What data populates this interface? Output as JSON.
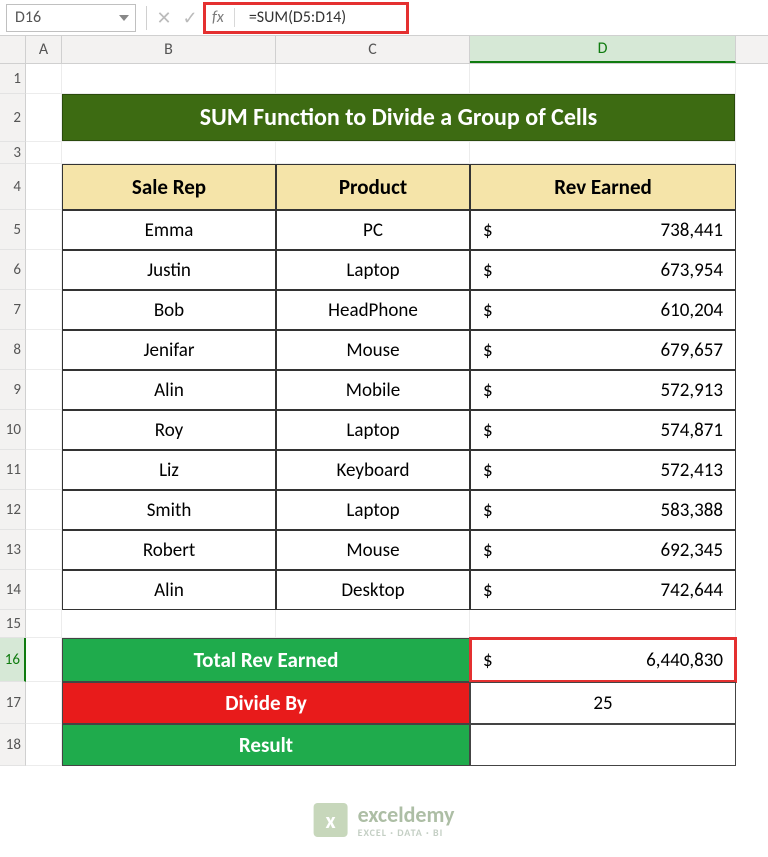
{
  "formulaBar": {
    "cellRef": "D16",
    "fxLabel": "fx",
    "formula": "=SUM(D5:D14)"
  },
  "columns": {
    "A": "A",
    "B": "B",
    "C": "C",
    "D": "D"
  },
  "rows": [
    "1",
    "2",
    "3",
    "4",
    "5",
    "6",
    "7",
    "8",
    "9",
    "10",
    "11",
    "12",
    "13",
    "14",
    "15",
    "16",
    "17",
    "18"
  ],
  "title": "SUM Function to Divide a Group of Cells",
  "headers": {
    "saleRep": "Sale Rep",
    "product": "Product",
    "rev": "Rev Earned"
  },
  "data": [
    {
      "rep": "Emma",
      "product": "PC",
      "cur": "$",
      "rev": "738,441"
    },
    {
      "rep": "Justin",
      "product": "Laptop",
      "cur": "$",
      "rev": "673,954"
    },
    {
      "rep": "Bob",
      "product": "HeadPhone",
      "cur": "$",
      "rev": "610,204"
    },
    {
      "rep": "Jenifar",
      "product": "Mouse",
      "cur": "$",
      "rev": "679,657"
    },
    {
      "rep": "Alin",
      "product": "Mobile",
      "cur": "$",
      "rev": "572,913"
    },
    {
      "rep": "Roy",
      "product": "Laptop",
      "cur": "$",
      "rev": "574,871"
    },
    {
      "rep": "Liz",
      "product": "Keyboard",
      "cur": "$",
      "rev": "572,413"
    },
    {
      "rep": "Smith",
      "product": "Laptop",
      "cur": "$",
      "rev": "583,388"
    },
    {
      "rep": "Robert",
      "product": "Mouse",
      "cur": "$",
      "rev": "692,345"
    },
    {
      "rep": "Alin",
      "product": "Desktop",
      "cur": "$",
      "rev": "742,644"
    }
  ],
  "summary": {
    "totalLabel": "Total Rev Earned",
    "totalCur": "$",
    "totalVal": "6,440,830",
    "divideLabel": "Divide By",
    "divideVal": "25",
    "resultLabel": "Result",
    "resultVal": ""
  },
  "watermark": {
    "name": "exceldemy",
    "sub": "EXCEL · DATA · BI"
  },
  "colors": {
    "titleBg": "#3d6b12",
    "headerBg": "#f5e4a9",
    "greenBg": "#1fab4c",
    "redBg": "#e81b1b",
    "highlight": "#e43030"
  }
}
